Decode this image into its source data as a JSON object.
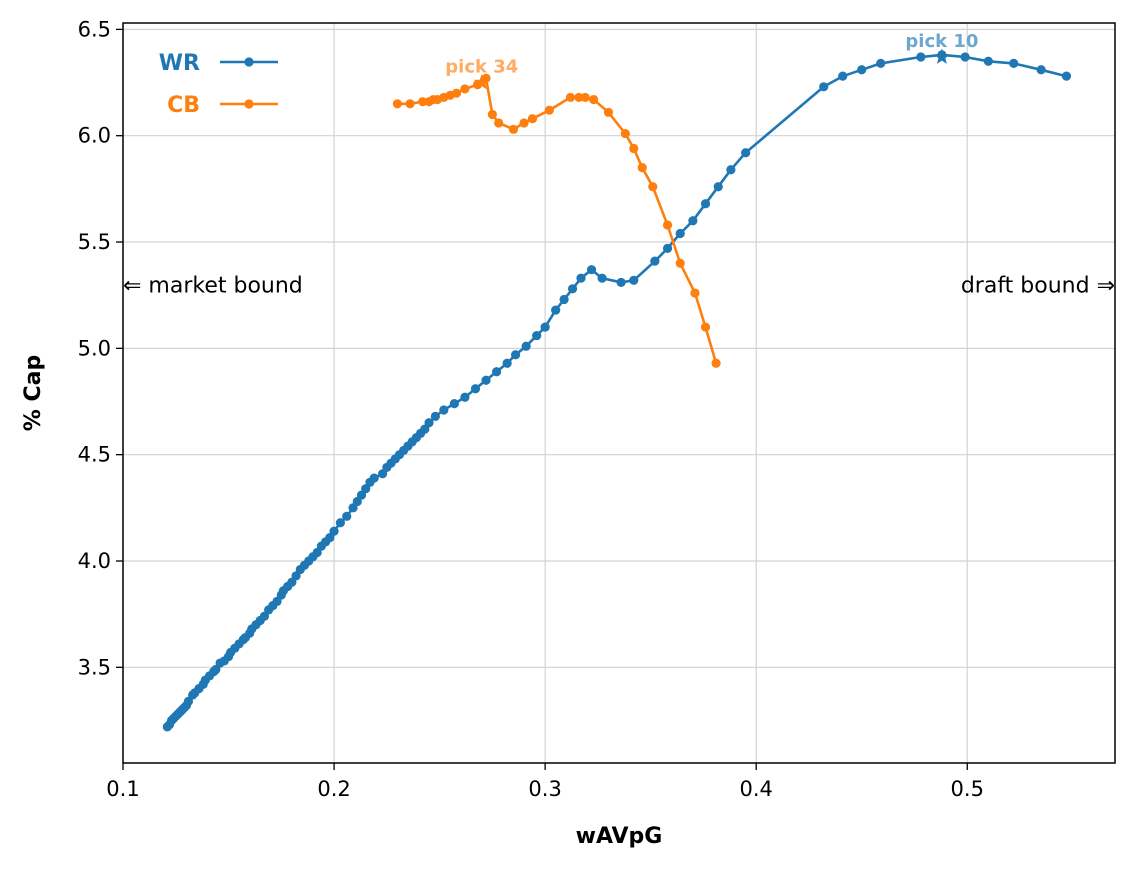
{
  "chart_data": {
    "type": "line",
    "title": "",
    "xlabel": "wAVpG",
    "ylabel": "% Cap",
    "xlim": [
      0.1,
      0.57
    ],
    "ylim": [
      3.05,
      6.53
    ],
    "xticks": [
      0.1,
      0.2,
      0.3,
      0.4,
      0.5
    ],
    "xtick_labels": [
      "0.1",
      "0.2",
      "0.3",
      "0.4",
      "0.5"
    ],
    "yticks": [
      3.5,
      4.0,
      4.5,
      5.0,
      5.5,
      6.0,
      6.5
    ],
    "ytick_labels": [
      "3.5",
      "4.0",
      "4.5",
      "5.0",
      "5.5",
      "6.0",
      "6.5"
    ],
    "grid": true,
    "legend_position": "top-left",
    "side_notes": {
      "left": "⇐ market bound",
      "right": "draft bound ⇒"
    },
    "series": [
      {
        "name": "WR",
        "color": "#1f77b4",
        "x": [
          0.121,
          0.122,
          0.123,
          0.124,
          0.125,
          0.126,
          0.127,
          0.128,
          0.129,
          0.13,
          0.131,
          0.133,
          0.134,
          0.136,
          0.138,
          0.139,
          0.141,
          0.143,
          0.144,
          0.146,
          0.148,
          0.15,
          0.151,
          0.153,
          0.155,
          0.157,
          0.158,
          0.16,
          0.161,
          0.163,
          0.165,
          0.167,
          0.169,
          0.171,
          0.173,
          0.175,
          0.176,
          0.178,
          0.18,
          0.182,
          0.184,
          0.186,
          0.188,
          0.19,
          0.192,
          0.194,
          0.196,
          0.198,
          0.2,
          0.203,
          0.206,
          0.209,
          0.211,
          0.213,
          0.215,
          0.217,
          0.219,
          0.223,
          0.225,
          0.227,
          0.229,
          0.231,
          0.233,
          0.235,
          0.237,
          0.239,
          0.241,
          0.243,
          0.245,
          0.248,
          0.252,
          0.257,
          0.262,
          0.267,
          0.272,
          0.277,
          0.282,
          0.286,
          0.291,
          0.296,
          0.3,
          0.305,
          0.309,
          0.313,
          0.317,
          0.322,
          0.327,
          0.336,
          0.342,
          0.352,
          0.358,
          0.364,
          0.37,
          0.376,
          0.382,
          0.388,
          0.395,
          0.432,
          0.441,
          0.45,
          0.459,
          0.478,
          0.488,
          0.499,
          0.51,
          0.522,
          0.535,
          0.547
        ],
        "y": [
          3.22,
          3.23,
          3.25,
          3.26,
          3.27,
          3.28,
          3.29,
          3.3,
          3.31,
          3.32,
          3.34,
          3.37,
          3.38,
          3.4,
          3.42,
          3.44,
          3.46,
          3.48,
          3.49,
          3.52,
          3.53,
          3.55,
          3.57,
          3.59,
          3.61,
          3.63,
          3.64,
          3.66,
          3.68,
          3.7,
          3.72,
          3.74,
          3.77,
          3.79,
          3.81,
          3.84,
          3.86,
          3.88,
          3.9,
          3.93,
          3.96,
          3.98,
          4.0,
          4.02,
          4.04,
          4.07,
          4.09,
          4.11,
          4.14,
          4.18,
          4.21,
          4.25,
          4.28,
          4.31,
          4.34,
          4.37,
          4.39,
          4.41,
          4.44,
          4.46,
          4.48,
          4.5,
          4.52,
          4.54,
          4.56,
          4.58,
          4.6,
          4.62,
          4.65,
          4.68,
          4.71,
          4.74,
          4.77,
          4.81,
          4.85,
          4.89,
          4.93,
          4.97,
          5.01,
          5.06,
          5.1,
          5.18,
          5.23,
          5.28,
          5.33,
          5.37,
          5.33,
          5.31,
          5.32,
          5.41,
          5.47,
          5.54,
          5.6,
          5.68,
          5.76,
          5.84,
          5.92,
          6.23,
          6.28,
          6.31,
          6.34,
          6.37,
          6.38,
          6.37,
          6.35,
          6.34,
          6.31,
          6.28
        ]
      },
      {
        "name": "CB",
        "color": "#ff7f0e",
        "x": [
          0.23,
          0.236,
          0.242,
          0.245,
          0.247,
          0.249,
          0.252,
          0.255,
          0.258,
          0.262,
          0.268,
          0.272,
          0.275,
          0.278,
          0.285,
          0.29,
          0.294,
          0.302,
          0.312,
          0.316,
          0.319,
          0.323,
          0.33,
          0.338,
          0.342,
          0.346,
          0.351,
          0.358,
          0.364,
          0.371,
          0.376,
          0.381
        ],
        "y": [
          6.15,
          6.15,
          6.16,
          6.16,
          6.17,
          6.17,
          6.18,
          6.19,
          6.2,
          6.22,
          6.24,
          6.27,
          6.1,
          6.06,
          6.03,
          6.06,
          6.08,
          6.12,
          6.18,
          6.18,
          6.18,
          6.17,
          6.11,
          6.01,
          5.94,
          5.85,
          5.76,
          5.58,
          5.4,
          5.26,
          5.1,
          4.93
        ]
      }
    ],
    "annotations": [
      {
        "text": "pick 10",
        "series": "WR",
        "x": 0.488,
        "y": 6.37
      },
      {
        "text": "pick 34",
        "series": "CB",
        "x": 0.27,
        "y": 6.25
      }
    ]
  }
}
